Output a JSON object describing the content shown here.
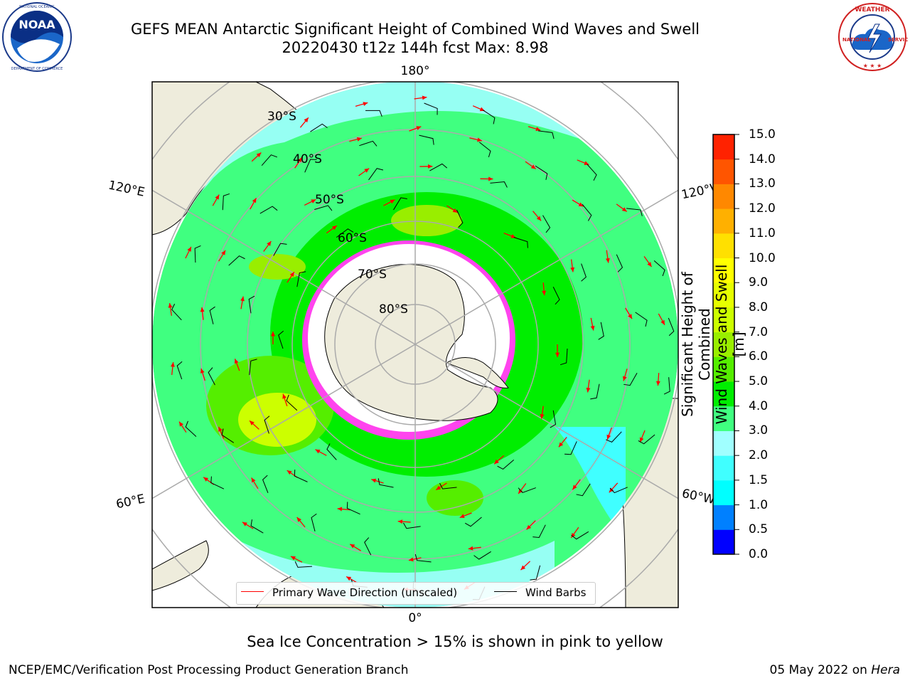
{
  "title": {
    "line1": "GEFS MEAN Antarctic Significant Height of Combined Wind Waves and Swell",
    "line2": "20220430 t12z 144h fcst   Max: 8.98"
  },
  "logos": {
    "left": {
      "name": "NOAA",
      "ring_text": "NATIONAL OCEANIC AND ATMOSPHERIC ADMINISTRATION · U.S. DEPARTMENT OF COMMERCE"
    },
    "right": {
      "name": "NATIONAL WEATHER SERVICE"
    }
  },
  "map": {
    "projection": "south-polar-stereographic",
    "longitude_labels": {
      "top": "180°",
      "bottom": "0°",
      "left_upper": "120°E",
      "left_lower": "60°E",
      "right_upper": "120°W",
      "right_lower": "60°W"
    },
    "latitude_labels": [
      "30°S",
      "40°S",
      "50°S",
      "60°S",
      "70°S",
      "80°S"
    ],
    "colors": {
      "land": "#eeecdc",
      "ice_shelf": "#ffffff",
      "sea_ice": "#ff44ee",
      "grid": "#aaaaaa",
      "arrow": "#ff0000",
      "barb": "#000000"
    }
  },
  "legend": {
    "wave_direction": "Primary Wave Direction (unscaled)",
    "wind_barbs": "Wind Barbs"
  },
  "colorbar": {
    "label_line1": "Significant Height of Combined",
    "label_line2": "Wind Waves and Swell [m]",
    "ticks": [
      "15.0",
      "14.0",
      "13.0",
      "12.0",
      "11.0",
      "10.0",
      "9.0",
      "8.0",
      "7.0",
      "6.0",
      "5.0",
      "4.0",
      "3.0",
      "2.0",
      "1.5",
      "1.0",
      "0.5",
      "0.0"
    ],
    "colors": [
      "#0000ff",
      "#0080ff",
      "#00ffff",
      "#40ffff",
      "#a0ffff",
      "#40ff80",
      "#00ee00",
      "#55ee00",
      "#99ee00",
      "#ccff00",
      "#e6ff00",
      "#ffff00",
      "#ffe000",
      "#ffb000",
      "#ff8800",
      "#ff5500",
      "#ff2200"
    ]
  },
  "subtitle": "Sea Ice Concentration > 15% is shown in pink to yellow",
  "footer": {
    "left": "NCEP/EMC/Verification Post Processing Product Generation Branch",
    "right_prefix": "05 May 2022 on ",
    "right_host": "Hera"
  }
}
